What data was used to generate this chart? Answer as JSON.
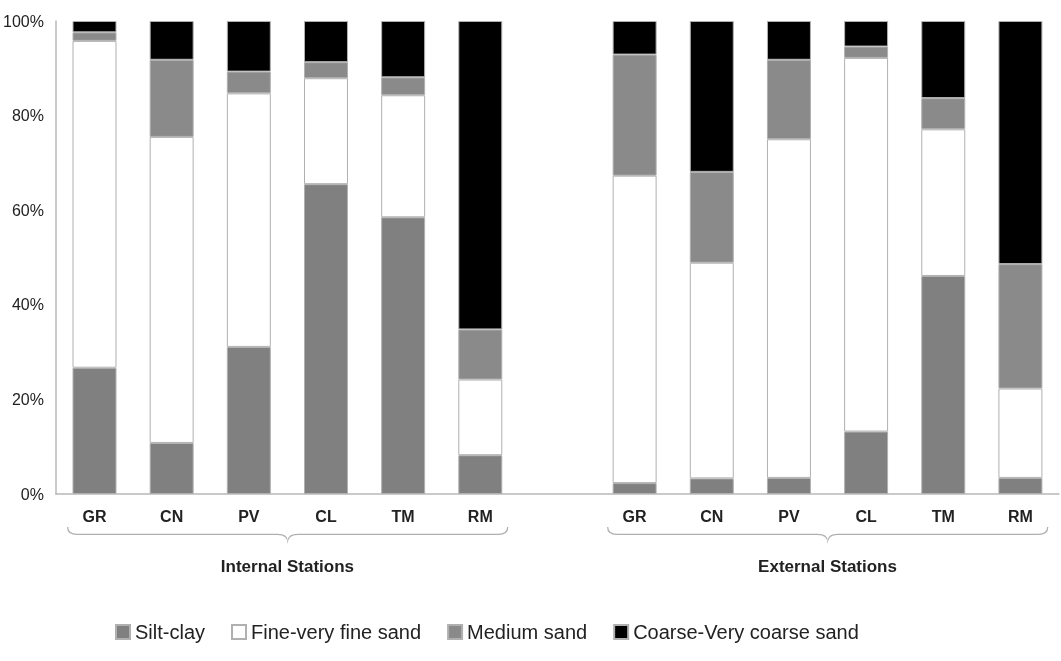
{
  "chart_data": {
    "type": "bar",
    "stacked": true,
    "categories": [
      "GR",
      "CN",
      "PV",
      "CL",
      "TM",
      "RM",
      null,
      "GR",
      "CN",
      "PV",
      "CL",
      "TM",
      "RM"
    ],
    "series": [
      {
        "name": "Silt-clay",
        "color": "#808080",
        "values": [
          26.7,
          10.8,
          31.1,
          65.5,
          58.5,
          8.2,
          null,
          2.3,
          3.3,
          3.4,
          13.2,
          46.1,
          3.4
        ]
      },
      {
        "name": "Fine-very fine sand",
        "color": "#ffffff",
        "values": [
          69.1,
          64.7,
          53.6,
          22.4,
          25.8,
          16.0,
          null,
          65.0,
          45.6,
          71.6,
          79.0,
          31.0,
          18.9
        ]
      },
      {
        "name": "Medium sand",
        "color": "#8a8a8a",
        "values": [
          1.8,
          16.3,
          4.6,
          3.4,
          3.8,
          10.6,
          null,
          25.6,
          19.2,
          16.8,
          2.4,
          6.6,
          26.3
        ]
      },
      {
        "name": "Coarse-Very coarse sand",
        "color": "#000000",
        "values": [
          2.4,
          8.2,
          10.7,
          8.7,
          11.9,
          65.2,
          null,
          7.1,
          31.9,
          8.2,
          5.4,
          16.3,
          51.4
        ]
      }
    ],
    "ylim": [
      0,
      100
    ],
    "yticks": [
      {
        "value": 0,
        "label": "0%"
      },
      {
        "value": 20,
        "label": "20%"
      },
      {
        "value": 40,
        "label": "40%"
      },
      {
        "value": 60,
        "label": "60%"
      },
      {
        "value": 80,
        "label": "80%"
      },
      {
        "value": 100,
        "label": "100%"
      }
    ],
    "annotations": [
      "Internal Stations",
      "External Stations"
    ],
    "grid": false,
    "legend": "bottom"
  }
}
